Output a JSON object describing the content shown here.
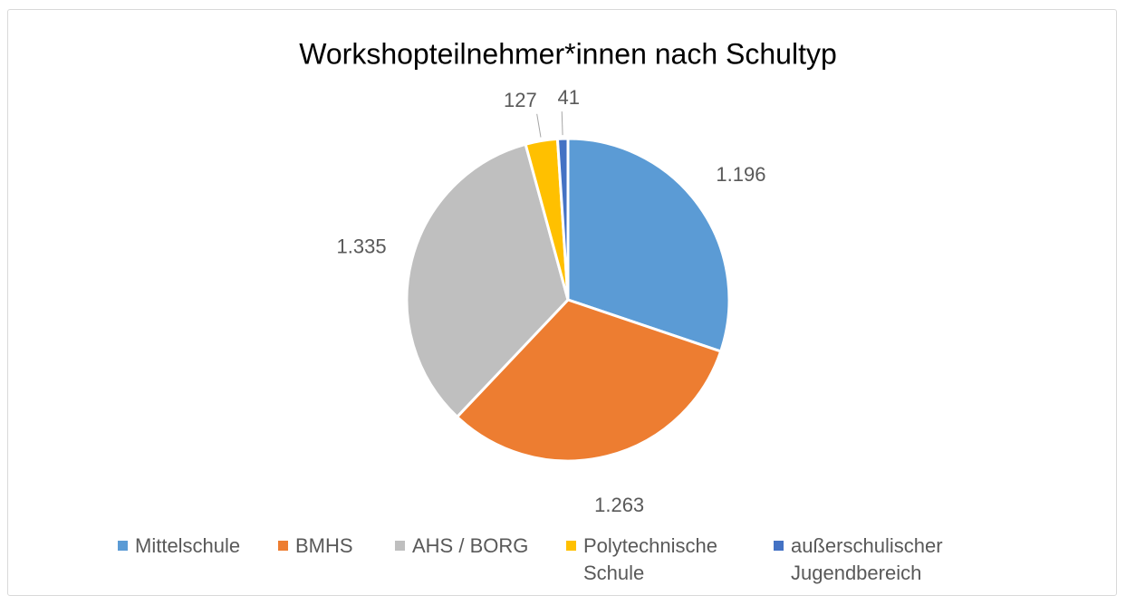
{
  "chart_data": {
    "type": "pie",
    "title": "Workshopteilnehmer*innen nach Schultyp",
    "categories": [
      "Mittelschule",
      "BMHS",
      "AHS / BORG",
      "Polytechnische Schule",
      "außerschulischer Jugendbereich"
    ],
    "values": [
      1196,
      1263,
      1335,
      127,
      41
    ],
    "value_labels": [
      "1.196",
      "1.263",
      "1.335",
      "127",
      "41"
    ],
    "colors": [
      "#5b9bd5",
      "#ed7d31",
      "#bfbfbf",
      "#ffc000",
      "#4472c4"
    ],
    "legend": "bottom"
  }
}
